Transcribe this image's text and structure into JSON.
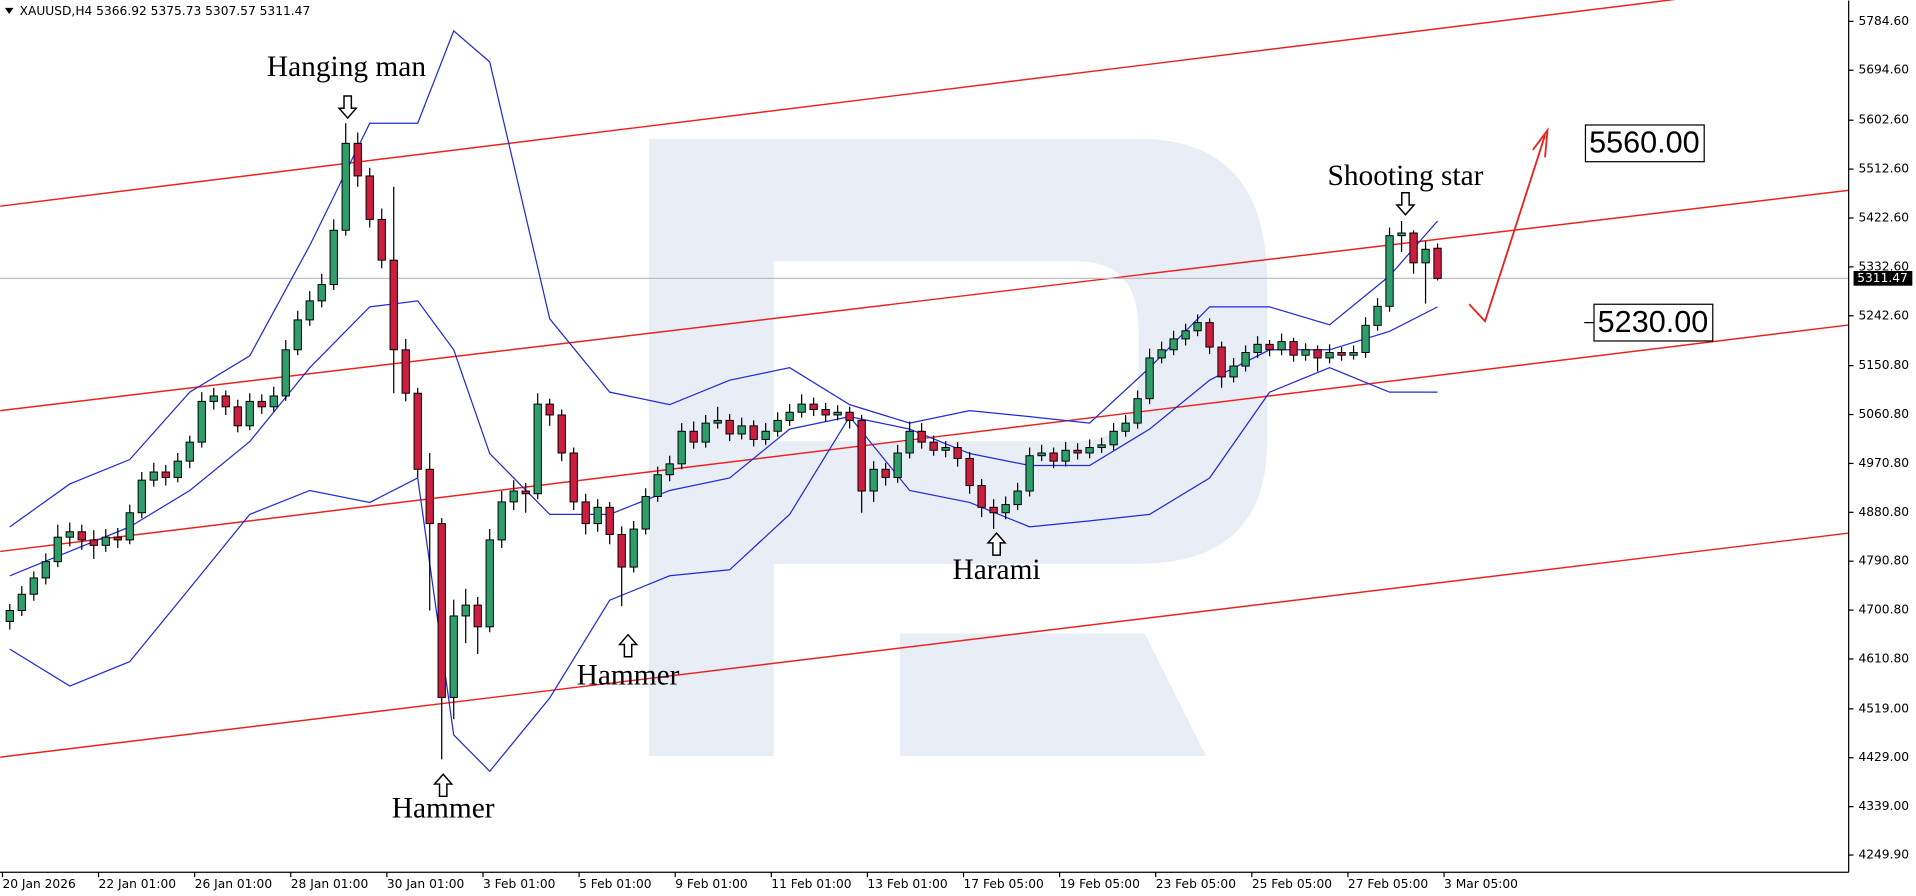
{
  "chart_data": {
    "type": "candlestick",
    "header": "XAUUSD,H4  5366.92 5375.73 5307.57 5311.47",
    "ylim": [
      4218.3,
      5822.9
    ],
    "yticks": [
      {
        "value": 5784.6,
        "label": "5784.60"
      },
      {
        "value": 5694.6,
        "label": "5694.60"
      },
      {
        "value": 5602.6,
        "label": "5602.60"
      },
      {
        "value": 5512.6,
        "label": "5512.60"
      },
      {
        "value": 5422.6,
        "label": "5422.60"
      },
      {
        "value": 5332.6,
        "label": "5332.60"
      },
      {
        "value": 5242.6,
        "label": "5242.60"
      },
      {
        "value": 5150.8,
        "label": "5150.80"
      },
      {
        "value": 5060.8,
        "label": "5060.80"
      },
      {
        "value": 4970.8,
        "label": "4970.80"
      },
      {
        "value": 4880.8,
        "label": "4880.80"
      },
      {
        "value": 4790.8,
        "label": "4790.80"
      },
      {
        "value": 4700.8,
        "label": "4700.80"
      },
      {
        "value": 4610.8,
        "label": "4610.80"
      },
      {
        "value": 4519,
        "label": "4519.00"
      },
      {
        "value": 4429,
        "label": "4429.00"
      },
      {
        "value": 4339,
        "label": "4339.00"
      },
      {
        "value": 4249.9,
        "label": "4249.90"
      }
    ],
    "xlabels": [
      "20 Jan 2026",
      "22 Jan 01:00",
      "26 Jan 01:00",
      "28 Jan 01:00",
      "30 Jan 01:00",
      "3 Feb 01:00",
      "5 Feb 01:00",
      "9 Feb 01:00",
      "11 Feb 01:00",
      "13 Feb 01:00",
      "17 Feb 05:00",
      "19 Feb 05:00",
      "23 Feb 05:00",
      "25 Feb 05:00",
      "27 Feb 05:00",
      "3 Mar 05:00"
    ],
    "up_color": "#2e9e6a",
    "down_color": "#cc1f3f",
    "candles": [
      [
        4680,
        4712,
        4665,
        4700
      ],
      [
        4700,
        4745,
        4690,
        4730
      ],
      [
        4730,
        4772,
        4718,
        4760
      ],
      [
        4760,
        4805,
        4748,
        4790
      ],
      [
        4790,
        4858,
        4780,
        4835
      ],
      [
        4835,
        4862,
        4818,
        4845
      ],
      [
        4845,
        4858,
        4812,
        4830
      ],
      [
        4830,
        4848,
        4795,
        4820
      ],
      [
        4820,
        4850,
        4808,
        4835
      ],
      [
        4835,
        4852,
        4815,
        4830
      ],
      [
        4830,
        4895,
        4822,
        4880
      ],
      [
        4880,
        4955,
        4870,
        4940
      ],
      [
        4940,
        4972,
        4928,
        4955
      ],
      [
        4955,
        4968,
        4930,
        4945
      ],
      [
        4945,
        4990,
        4936,
        4975
      ],
      [
        4975,
        5022,
        4962,
        5010
      ],
      [
        5010,
        5102,
        5000,
        5085
      ],
      [
        5085,
        5110,
        5070,
        5095
      ],
      [
        5095,
        5105,
        5060,
        5075
      ],
      [
        5075,
        5088,
        5028,
        5040
      ],
      [
        5040,
        5100,
        5032,
        5085
      ],
      [
        5085,
        5098,
        5062,
        5075
      ],
      [
        5075,
        5112,
        5066,
        5095
      ],
      [
        5095,
        5198,
        5086,
        5180
      ],
      [
        5180,
        5252,
        5170,
        5235
      ],
      [
        5235,
        5288,
        5224,
        5270
      ],
      [
        5270,
        5320,
        5258,
        5300
      ],
      [
        5300,
        5420,
        5290,
        5400
      ],
      [
        5400,
        5597,
        5390,
        5560
      ],
      [
        5560,
        5580,
        5480,
        5500
      ],
      [
        5500,
        5515,
        5405,
        5420
      ],
      [
        5420,
        5440,
        5330,
        5345
      ],
      [
        5345,
        5480,
        5100,
        5180
      ],
      [
        5180,
        5200,
        5085,
        5100
      ],
      [
        5100,
        5110,
        4945,
        4960
      ],
      [
        4960,
        4990,
        4700,
        4860
      ],
      [
        4860,
        4870,
        4426,
        4540
      ],
      [
        4540,
        4720,
        4500,
        4690
      ],
      [
        4690,
        4740,
        4640,
        4710
      ],
      [
        4710,
        4725,
        4620,
        4670
      ],
      [
        4670,
        4850,
        4660,
        4830
      ],
      [
        4830,
        4920,
        4815,
        4900
      ],
      [
        4900,
        4940,
        4885,
        4920
      ],
      [
        4920,
        4935,
        4880,
        4915
      ],
      [
        4915,
        5100,
        4905,
        5080
      ],
      [
        5080,
        5090,
        5040,
        5060
      ],
      [
        5060,
        5070,
        4975,
        4990
      ],
      [
        4990,
        5000,
        4885,
        4900
      ],
      [
        4900,
        4915,
        4840,
        4860
      ],
      [
        4860,
        4905,
        4845,
        4890
      ],
      [
        4890,
        4900,
        4822,
        4840
      ],
      [
        4840,
        4855,
        4708,
        4780
      ],
      [
        4780,
        4865,
        4770,
        4850
      ],
      [
        4850,
        4925,
        4840,
        4910
      ],
      [
        4910,
        4965,
        4900,
        4950
      ],
      [
        4950,
        4985,
        4938,
        4970
      ],
      [
        4970,
        5045,
        4960,
        5030
      ],
      [
        5030,
        5048,
        4998,
        5010
      ],
      [
        5010,
        5060,
        5000,
        5045
      ],
      [
        5045,
        5075,
        5035,
        5050
      ],
      [
        5050,
        5062,
        5012,
        5025
      ],
      [
        5025,
        5055,
        5015,
        5040
      ],
      [
        5040,
        5050,
        5002,
        5015
      ],
      [
        5015,
        5045,
        5005,
        5030
      ],
      [
        5030,
        5065,
        5020,
        5050
      ],
      [
        5050,
        5080,
        5040,
        5065
      ],
      [
        5065,
        5098,
        5055,
        5080
      ],
      [
        5080,
        5092,
        5058,
        5070
      ],
      [
        5070,
        5082,
        5048,
        5060
      ],
      [
        5060,
        5078,
        5050,
        5065
      ],
      [
        5065,
        5075,
        5035,
        5050
      ],
      [
        5050,
        5060,
        4880,
        4920
      ],
      [
        4920,
        4975,
        4900,
        4960
      ],
      [
        4960,
        4972,
        4930,
        4945
      ],
      [
        4945,
        5005,
        4935,
        4990
      ],
      [
        4990,
        5048,
        4980,
        5030
      ],
      [
        5030,
        5045,
        4998,
        5010
      ],
      [
        5010,
        5022,
        4985,
        4995
      ],
      [
        4995,
        5012,
        4982,
        5000
      ],
      [
        5000,
        5010,
        4965,
        4980
      ],
      [
        4980,
        4992,
        4915,
        4930
      ],
      [
        4930,
        4942,
        4872,
        4890
      ],
      [
        4890,
        4905,
        4850,
        4880
      ],
      [
        4880,
        4910,
        4868,
        4895
      ],
      [
        4895,
        4935,
        4885,
        4920
      ],
      [
        4920,
        5000,
        4910,
        4985
      ],
      [
        4985,
        5005,
        4975,
        4990
      ],
      [
        4990,
        5000,
        4962,
        4975
      ],
      [
        4975,
        5010,
        4965,
        4995
      ],
      [
        4995,
        5008,
        4978,
        4990
      ],
      [
        4990,
        5015,
        4980,
        5000
      ],
      [
        5000,
        5018,
        4990,
        5005
      ],
      [
        5005,
        5045,
        4995,
        5030
      ],
      [
        5030,
        5060,
        5020,
        5045
      ],
      [
        5045,
        5105,
        5035,
        5090
      ],
      [
        5090,
        5182,
        5080,
        5165
      ],
      [
        5165,
        5195,
        5155,
        5180
      ],
      [
        5180,
        5215,
        5170,
        5200
      ],
      [
        5200,
        5228,
        5188,
        5215
      ],
      [
        5215,
        5245,
        5205,
        5230
      ],
      [
        5230,
        5238,
        5172,
        5185
      ],
      [
        5185,
        5195,
        5110,
        5130
      ],
      [
        5130,
        5165,
        5120,
        5150
      ],
      [
        5150,
        5188,
        5140,
        5175
      ],
      [
        5175,
        5205,
        5165,
        5190
      ],
      [
        5190,
        5198,
        5168,
        5180
      ],
      [
        5180,
        5210,
        5170,
        5195
      ],
      [
        5195,
        5202,
        5158,
        5170
      ],
      [
        5170,
        5192,
        5160,
        5180
      ],
      [
        5180,
        5188,
        5140,
        5165
      ],
      [
        5165,
        5190,
        5155,
        5175
      ],
      [
        5175,
        5185,
        5160,
        5170
      ],
      [
        5170,
        5188,
        5162,
        5175
      ],
      [
        5175,
        5240,
        5165,
        5225
      ],
      [
        5225,
        5275,
        5215,
        5260
      ],
      [
        5260,
        5405,
        5250,
        5390
      ],
      [
        5390,
        5417,
        5360,
        5395
      ],
      [
        5395,
        5400,
        5320,
        5340
      ],
      [
        5340,
        5380,
        5265,
        5365
      ],
      [
        5366.92,
        5375.73,
        5307.57,
        5311.47
      ]
    ],
    "band_index": [
      0,
      5,
      10,
      15,
      20,
      25,
      30,
      34,
      37,
      40,
      45,
      50,
      55,
      60,
      65,
      70,
      75,
      80,
      85,
      90,
      95,
      100,
      105,
      110,
      115,
      119
    ],
    "band_color": "#1f2bd6",
    "bands": [
      {
        "values": [
          4854,
          4933,
          4978,
          5102,
          5169,
          5372,
          5597,
          5597,
          5767,
          5710,
          5237,
          5102,
          5079,
          5124,
          5147,
          5079,
          5045,
          5068,
          5057,
          5045,
          5147,
          5259,
          5259,
          5226,
          5316,
          5417
        ]
      },
      {
        "values": [
          4764,
          4809,
          4854,
          4921,
          5011,
          5147,
          5259,
          5270,
          5180,
          4989,
          4877,
          4877,
          4921,
          4944,
          5034,
          5057,
          5034,
          4989,
          4967,
          4967,
          5034,
          5124,
          5180,
          5180,
          5214,
          5259
        ]
      },
      {
        "values": [
          4629,
          4561,
          4606,
          4741,
          4877,
          4921,
          4899,
          4944,
          4471,
          4404,
          4539,
          4719,
          4764,
          4775,
          4877,
          5057,
          4921,
          4899,
          4854,
          4865,
          4877,
          4944,
          5102,
          5147,
          5102,
          5102
        ]
      }
    ],
    "channel_color": "#e8231f",
    "channels": [
      {
        "index": [
          -0.8,
          153.3
        ],
        "values": [
          5444.3,
          5864.6
        ]
      },
      {
        "index": [
          -0.8,
          153.3
        ],
        "values": [
          5068,
          5473.6
        ]
      },
      {
        "index": [
          -0.8,
          153.3
        ],
        "values": [
          4808.8,
          5225.7
        ]
      },
      {
        "index": [
          -0.8,
          153.3
        ],
        "values": [
          4430.2,
          4842.6
        ]
      }
    ],
    "last_price": {
      "value": 5311.47,
      "label": "5311.47"
    },
    "levels": [
      {
        "value": 5560,
        "label": "5560.00"
      },
      {
        "value": 5230,
        "label": "5230.00"
      }
    ],
    "annotations": [
      "Hanging man",
      "Shooting star",
      "Harami",
      "Hammer",
      "Hammer"
    ]
  }
}
